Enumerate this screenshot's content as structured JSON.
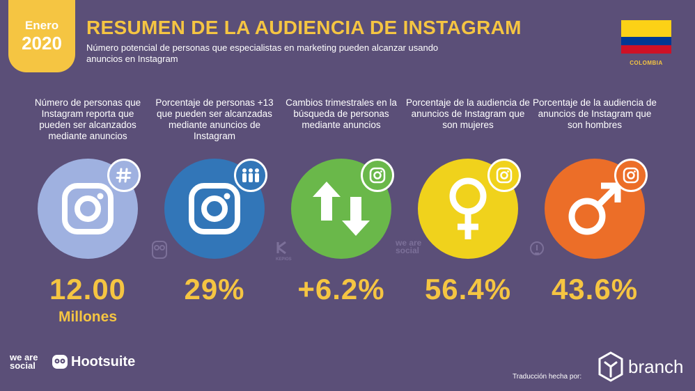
{
  "header": {
    "month": "Enero",
    "year": "2020",
    "title": "RESUMEN DE LA AUDIENCIA DE INSTAGRAM",
    "subtitle": "Número potencial de personas que especialistas en marketing pueden alcanzar usando anuncios en Instagram",
    "country": "COLOMBIA"
  },
  "colors": {
    "background": "#5b4f78",
    "accent": "#f5c542",
    "circle_1": "#9fb1e0",
    "circle_2": "#3276b8",
    "circle_3": "#6ab84a",
    "circle_4": "#f0d21c",
    "circle_5": "#ec6e28"
  },
  "stats": [
    {
      "description": "Número de personas que Instagram reporta que pueden ser alcanzados mediante anuncios",
      "value": "12.00",
      "unit": "Millones",
      "icon": "instagram-icon",
      "badge_icon": "hashtag-icon"
    },
    {
      "description": "Porcentaje de personas +13 que pueden ser alcanzadas mediante anuncios de Instagram",
      "value": "29%",
      "icon": "instagram-icon",
      "badge_icon": "people-icon"
    },
    {
      "description": "Cambios trimestrales en la búsqueda de personas mediante anuncios",
      "value": "+6.2%",
      "icon": "up-down-arrows-icon",
      "badge_icon": "instagram-icon"
    },
    {
      "description": "Porcentaje de la audiencia de anuncios de Instagram que son mujeres",
      "value": "56.4%",
      "icon": "female-symbol-icon",
      "badge_icon": "instagram-icon"
    },
    {
      "description": "Porcentaje de la audiencia de anuncios de Instagram que son hombres",
      "value": "43.6%",
      "icon": "male-symbol-icon",
      "badge_icon": "instagram-icon"
    }
  ],
  "watermarks": {
    "kepios": "KEPIOS",
    "wearesocial": "we are social"
  },
  "footer": {
    "wearesocial": "we are social",
    "hootsuite": "Hootsuite",
    "credit": "Traducción hecha por:",
    "branch": "branch"
  }
}
